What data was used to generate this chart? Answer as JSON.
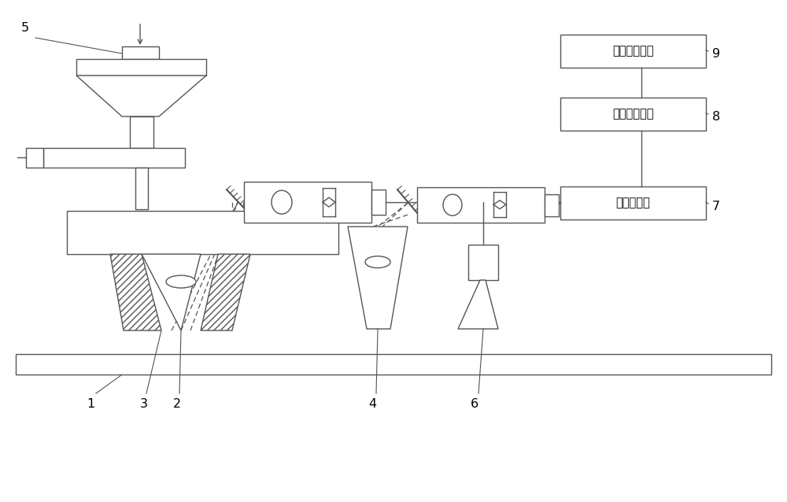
{
  "bg_color": "#ffffff",
  "lc": "#555555",
  "box9": "应力检测模块",
  "box8": "应力仿真模块",
  "box7": "温度控制器",
  "figsize": [
    10.0,
    6.38
  ],
  "dpi": 100,
  "xlim": [
    0,
    10
  ],
  "ylim": [
    0,
    6.38
  ]
}
